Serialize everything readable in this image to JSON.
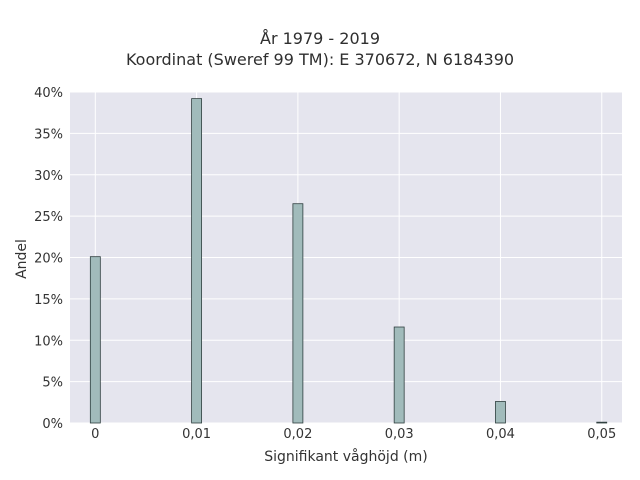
{
  "chart_data": {
    "type": "bar",
    "title": "År 1979 - 2019",
    "subtitle": "Koordinat (Sweref 99 TM): E 370672, N 6184390",
    "xlabel": "Signifikant våghöjd (m)",
    "ylabel": "Andel",
    "x": [
      0,
      0.01,
      0.02,
      0.03,
      0.04,
      0.05
    ],
    "values": [
      0.201,
      0.392,
      0.265,
      0.116,
      0.026,
      0.001
    ],
    "xlim": [
      -0.0025,
      0.052
    ],
    "ylim": [
      0,
      0.4
    ],
    "x_ticks": [
      {
        "value": 0,
        "label": "0"
      },
      {
        "value": 0.01,
        "label": "0,01"
      },
      {
        "value": 0.02,
        "label": "0,02"
      },
      {
        "value": 0.03,
        "label": "0,03"
      },
      {
        "value": 0.04,
        "label": "0,04"
      },
      {
        "value": 0.05,
        "label": "0,05"
      }
    ],
    "y_ticks": [
      {
        "value": 0,
        "label": "0%"
      },
      {
        "value": 0.05,
        "label": "5%"
      },
      {
        "value": 0.1,
        "label": "10%"
      },
      {
        "value": 0.15,
        "label": "15%"
      },
      {
        "value": 0.2,
        "label": "20%"
      },
      {
        "value": 0.25,
        "label": "25%"
      },
      {
        "value": 0.3,
        "label": "30%"
      },
      {
        "value": 0.35,
        "label": "35%"
      },
      {
        "value": 0.4,
        "label": "40%"
      }
    ],
    "grid": true,
    "colors": {
      "bar_fill": "#a1bbbb",
      "bar_stroke": "#2f3f3f",
      "plot_bg": "#e5e5ee",
      "grid": "#ffffff"
    }
  }
}
